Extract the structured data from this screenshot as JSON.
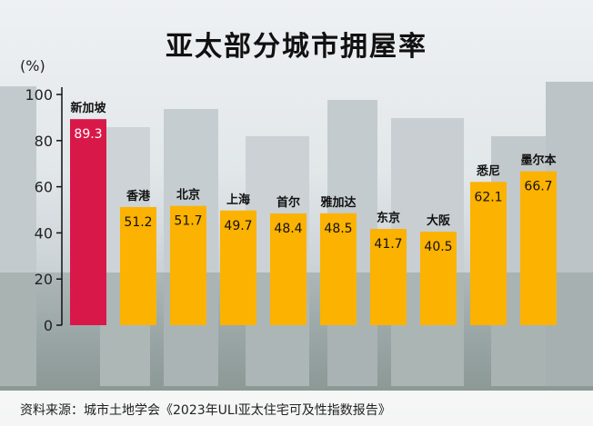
{
  "title": "亚太部分城市拥屋率",
  "source": "资料来源：城市土地学会《2023年ULI亚太住宅可及性指数报告》",
  "chart_data": {
    "type": "bar",
    "categories": [
      "新加坡",
      "香港",
      "北京",
      "上海",
      "首尔",
      "雅加达",
      "东京",
      "大阪",
      "悉尼",
      "墨尔本"
    ],
    "values": [
      89.3,
      51.2,
      51.7,
      49.7,
      48.4,
      48.5,
      41.7,
      40.5,
      62.1,
      66.7
    ],
    "value_labels": [
      "89.3",
      "51.2",
      "51.7",
      "49.7",
      "48.4",
      "48.5",
      "41.7",
      "40.5",
      "62.1",
      "66.7"
    ],
    "title": "亚太部分城市拥屋率",
    "xlabel": "",
    "ylabel": "(%)",
    "ylim": [
      0,
      100
    ],
    "yticks": [
      "0",
      "20",
      "40",
      "60",
      "80",
      "100"
    ],
    "grid": false,
    "highlight_index": 0,
    "colors": {
      "highlight": "#d9184a",
      "bar": "#fbb200",
      "highlight_label": "#ffffff",
      "bar_label": "#111111"
    }
  }
}
